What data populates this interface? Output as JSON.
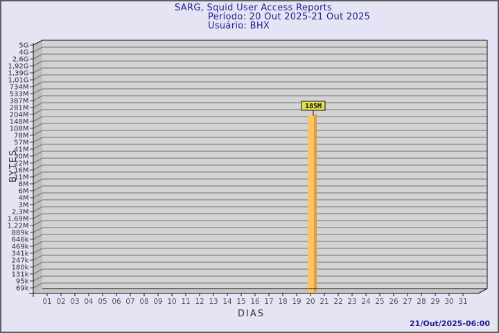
{
  "chart_data": {
    "type": "bar",
    "title": "SARG, Squid User Access Reports",
    "subtitle_period": "Período: 20 Out 2025-21 Out 2025",
    "subtitle_user": "Usuário: BHX",
    "xlabel": "DIAS",
    "ylabel": "BYTES",
    "y_scale": "log",
    "grid": "horizontal",
    "legend": "none",
    "ylim": [
      "69k",
      "5G"
    ],
    "y_ticks": [
      "5G",
      "4G",
      "2,6G",
      "1,92G",
      "1,39G",
      "1,01G",
      "734M",
      "533M",
      "387M",
      "281M",
      "204M",
      "148M",
      "108M",
      "78M",
      "57M",
      "41M",
      "30M",
      "22M",
      "16M",
      "11M",
      "8M",
      "6M",
      "4M",
      "3M",
      "2,3M",
      "1,69M",
      "1,22M",
      "889k",
      "646k",
      "469k",
      "341k",
      "247k",
      "180k",
      "131k",
      "95k",
      "69k"
    ],
    "x_ticks": [
      "01",
      "02",
      "03",
      "04",
      "05",
      "06",
      "07",
      "08",
      "09",
      "10",
      "11",
      "12",
      "13",
      "14",
      "15",
      "16",
      "17",
      "18",
      "19",
      "20",
      "21",
      "22",
      "23",
      "24",
      "25",
      "26",
      "27",
      "28",
      "29",
      "30",
      "31"
    ],
    "bars": [
      {
        "day": "20",
        "value": "185M",
        "bytes": 185000000
      }
    ]
  },
  "footer": {
    "timestamp": "21/Out/2025-06:00"
  },
  "colors": {
    "bg": "#E4E4F5",
    "border": "#5E5E5E",
    "plot_bg": "#D3D3D3",
    "wall": "#BEBEBE",
    "floor": "#C6C6C6",
    "grid": "#707070",
    "axis": "#111111",
    "title_color": "#1F1F8F",
    "ytick_color": "#2D2D2D",
    "xtick_color": "#555555",
    "axis_title_color": "#333333",
    "timestamp_color": "#1F1F8F",
    "bar_front": "#FDC365",
    "bar_side": "#DC9F42",
    "bar_top": "#F2CC86",
    "bar_label_bg": "#E4DE52"
  }
}
